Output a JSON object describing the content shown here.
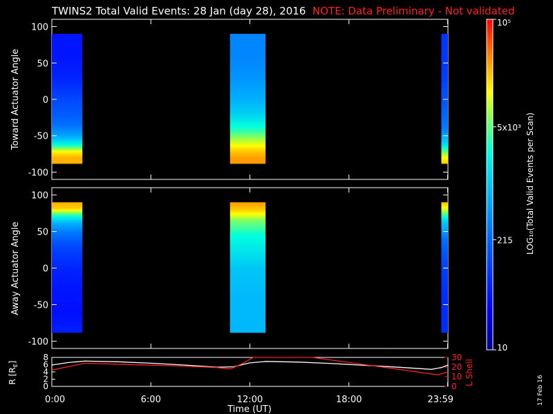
{
  "header": {
    "title": "TWINS2  Total Valid Events: 28 Jan (day  28), 2016",
    "note": "NOTE: Data Preliminary - Not validated"
  },
  "colorbar": {
    "label": "LOG₁₀(Total Valid Events per Scan)",
    "scale": "log",
    "range": [
      10,
      100000
    ],
    "ticks": [
      {
        "value": 10,
        "label": "10"
      },
      {
        "value": 215,
        "label": "215"
      },
      {
        "value": 5000,
        "label": "5x10³"
      },
      {
        "value": 100000,
        "label": "10⁵"
      }
    ]
  },
  "footer": {
    "date_stamp": "17 Feb 16"
  },
  "chart_data": [
    {
      "type": "heatmap",
      "ylabel": "Toward Actuator Angle",
      "ylim": [
        -110,
        110
      ],
      "y_ticks": [
        -100,
        -50,
        0,
        50,
        100
      ],
      "xlim": [
        0,
        24
      ],
      "angle_range": [
        -88,
        90
      ],
      "segments": [
        {
          "t_start": 0.0,
          "t_end": 1.85,
          "profile": [
            [
              -88,
              25000
            ],
            [
              -80,
              25000
            ],
            [
              -72,
              15000
            ],
            [
              -62,
              2500
            ],
            [
              -50,
              600
            ],
            [
              -35,
              250
            ],
            [
              -20,
              180
            ],
            [
              0,
              120
            ],
            [
              30,
              60
            ],
            [
              60,
              45
            ],
            [
              90,
              45
            ]
          ]
        },
        {
          "t_start": 10.8,
          "t_end": 12.95,
          "profile": [
            [
              -88,
              30000
            ],
            [
              -80,
              30000
            ],
            [
              -70,
              20000
            ],
            [
              -55,
              8000
            ],
            [
              -40,
              3000
            ],
            [
              -20,
              1200
            ],
            [
              0,
              700
            ],
            [
              30,
              450
            ],
            [
              60,
              350
            ],
            [
              90,
              350
            ]
          ]
        },
        {
          "t_start": 23.6,
          "t_end": 24.0,
          "profile": [
            [
              -88,
              20000
            ],
            [
              -78,
              12000
            ],
            [
              -62,
              1500
            ],
            [
              -40,
              300
            ],
            [
              0,
              150
            ],
            [
              40,
              90
            ],
            [
              90,
              80
            ]
          ]
        }
      ]
    },
    {
      "type": "heatmap",
      "ylabel": "Away Actuator Angle",
      "ylim": [
        -110,
        110
      ],
      "y_ticks": [
        -100,
        -50,
        0,
        50,
        100
      ],
      "xlim": [
        0,
        24
      ],
      "angle_range": [
        -88,
        90
      ],
      "segments": [
        {
          "t_start": 0.0,
          "t_end": 1.85,
          "profile": [
            [
              90,
              25000
            ],
            [
              82,
              20000
            ],
            [
              72,
              3000
            ],
            [
              62,
              700
            ],
            [
              50,
              300
            ],
            [
              30,
              120
            ],
            [
              0,
              60
            ],
            [
              -30,
              45
            ],
            [
              -60,
              40
            ],
            [
              -88,
              55
            ]
          ]
        },
        {
          "t_start": 10.8,
          "t_end": 12.95,
          "profile": [
            [
              90,
              30000
            ],
            [
              80,
              20000
            ],
            [
              65,
              6000
            ],
            [
              45,
              2500
            ],
            [
              20,
              1500
            ],
            [
              0,
              1000
            ],
            [
              -40,
              800
            ],
            [
              -88,
              800
            ]
          ]
        },
        {
          "t_start": 23.6,
          "t_end": 24.0,
          "profile": [
            [
              90,
              22000
            ],
            [
              80,
              10000
            ],
            [
              65,
              1200
            ],
            [
              40,
              250
            ],
            [
              0,
              100
            ],
            [
              -40,
              70
            ],
            [
              -88,
              70
            ]
          ]
        }
      ]
    },
    {
      "type": "line",
      "xlabel": "Time (UT)",
      "xlim": [
        0,
        24
      ],
      "x_ticks": [
        "0:00",
        "6:00",
        "12:00",
        "18:00",
        "23:59"
      ],
      "x_tick_values": [
        0,
        6,
        12,
        18,
        23.98
      ],
      "left_axis": {
        "label": "R [R_E]",
        "label_main": "R [R",
        "label_sub": "E",
        "label_end": "]",
        "ylim": [
          0,
          8
        ],
        "ticks": [
          0,
          2,
          4,
          6,
          8
        ]
      },
      "right_axis": {
        "label": "L Shell",
        "ylim": [
          0,
          30
        ],
        "ticks": [
          0,
          10,
          20,
          30
        ]
      },
      "series": [
        {
          "axis": "left",
          "color": "#ffffff",
          "x": [
            0,
            1,
            2,
            4,
            6,
            8,
            10,
            11,
            12,
            13,
            15,
            17,
            19,
            21,
            23,
            23.6,
            24
          ],
          "y": [
            5.9,
            6.6,
            7.0,
            6.8,
            6.4,
            5.9,
            5.3,
            5.4,
            6.5,
            6.9,
            6.7,
            6.3,
            5.8,
            5.3,
            4.7,
            5.2,
            5.9
          ]
        },
        {
          "axis": "right",
          "color": "#ff2020",
          "x": [
            0,
            2,
            4,
            6,
            8,
            10,
            10.8,
            11.6,
            12.2,
            12.3,
            15.7,
            15.8,
            23.4,
            24.0
          ],
          "y": [
            17,
            24,
            23,
            22,
            21,
            19.5,
            18,
            24,
            30,
            30,
            30,
            30,
            12,
            15
          ]
        }
      ]
    }
  ]
}
